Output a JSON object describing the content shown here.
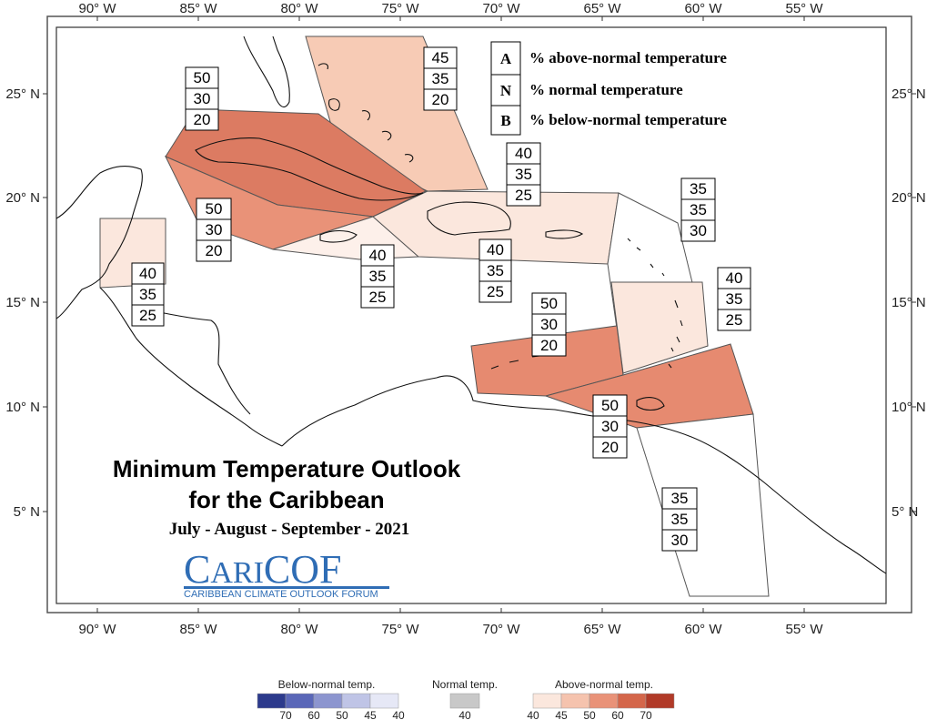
{
  "map": {
    "title_line1": "Minimum Temperature Outlook",
    "title_line2": "for the Caribbean",
    "season": "July - August - September - 2021",
    "logo": {
      "name": "CariCOF",
      "subtitle": "CARIBBEAN CLIMATE OUTLOOK FORUM"
    }
  },
  "axes": {
    "lon_labels": [
      "90° W",
      "85° W",
      "80° W",
      "75° W",
      "70° W",
      "65° W",
      "60° W",
      "55° W"
    ],
    "lat_labels": [
      "25° N",
      "20° N",
      "15° N",
      "10° N",
      "5° N"
    ]
  },
  "key": [
    {
      "letter": "A",
      "text": "% above-normal temperature"
    },
    {
      "letter": "N",
      "text": "% normal temperature"
    },
    {
      "letter": "B",
      "text": "% below-normal temperature"
    }
  ],
  "regions": [
    {
      "id": "bahamas",
      "probs": [
        "45",
        "35",
        "20"
      ],
      "color": "#f7cbb5"
    },
    {
      "id": "cuba",
      "probs": [
        "50",
        "30",
        "20"
      ],
      "color": "#dc7b62"
    },
    {
      "id": "cayman-jamaica",
      "probs": [
        "50",
        "30",
        "20"
      ],
      "color": "#e99278"
    },
    {
      "id": "belize",
      "probs": [
        "40",
        "35",
        "25"
      ],
      "color": "#fbe7dd"
    },
    {
      "id": "jamaica-south",
      "probs": [
        "40",
        "35",
        "25"
      ],
      "color": "#fdf0ea"
    },
    {
      "id": "hispaniola-pr",
      "probs": [
        "40",
        "35",
        "25"
      ],
      "color": "#fbe7dd"
    },
    {
      "id": "turks-vi",
      "probs": [
        "40",
        "35",
        "25"
      ],
      "color": "#fdf0ea"
    },
    {
      "id": "northern-leewards",
      "probs": [
        "35",
        "35",
        "30"
      ],
      "color": "#ffffff"
    },
    {
      "id": "windwards",
      "probs": [
        "40",
        "35",
        "25"
      ],
      "color": "#fbe7dd"
    },
    {
      "id": "abc-islands",
      "probs": [
        "50",
        "30",
        "20"
      ],
      "color": "#e68a70"
    },
    {
      "id": "trinidad-tobago",
      "probs": [
        "50",
        "30",
        "20"
      ],
      "color": "#e68a70"
    },
    {
      "id": "guianas",
      "probs": [
        "35",
        "35",
        "30"
      ],
      "color": "#ffffff"
    }
  ],
  "legend": {
    "below_label": "Below-normal temp.",
    "normal_label": "Normal temp.",
    "above_label": "Above-normal temp.",
    "below_colors": [
      "#2c3a8c",
      "#5a67b8",
      "#8c95cf",
      "#bfc4e6",
      "#e6e8f6"
    ],
    "below_values": [
      "70",
      "60",
      "50",
      "45",
      "40"
    ],
    "normal_color": "#c8c8c8",
    "normal_value": "40",
    "above_colors": [
      "#fbe7dd",
      "#f5c3ae",
      "#e99278",
      "#d4664a",
      "#b13a28"
    ],
    "above_values": [
      "40",
      "45",
      "50",
      "60",
      "70"
    ]
  }
}
